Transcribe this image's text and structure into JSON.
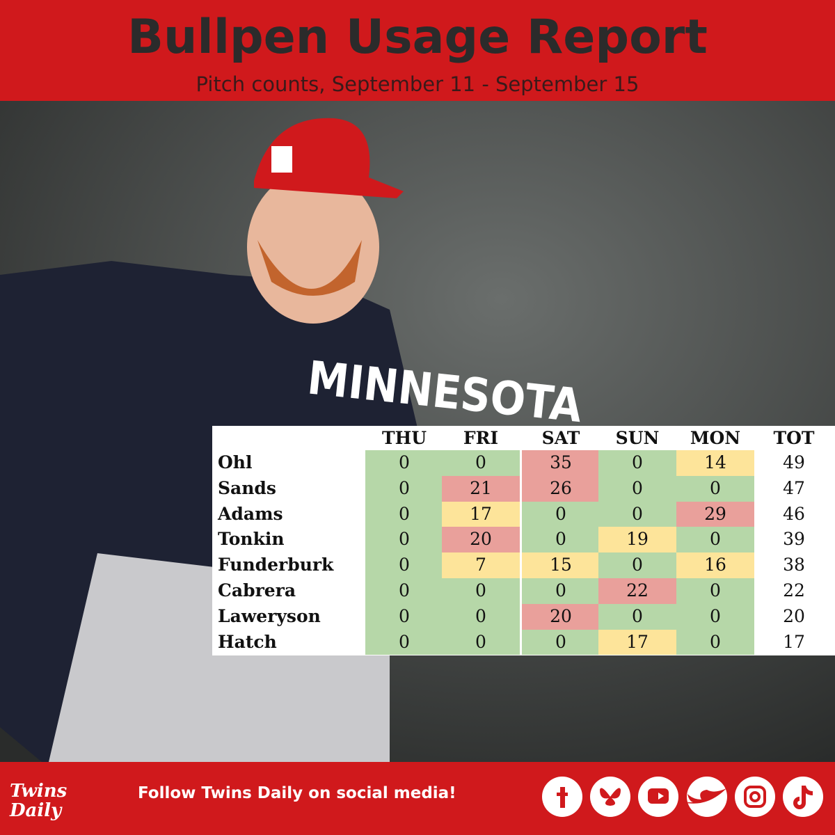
{
  "header": {
    "title": "Bullpen Usage Report",
    "subtitle": "Pitch counts, September 11 - September 15"
  },
  "photo": {
    "jersey_text": "MINNESOTA"
  },
  "table": {
    "columns": [
      "THU",
      "FRI",
      "SAT",
      "SUN",
      "MON",
      "TOT"
    ],
    "colors": {
      "g": "#b6d7a8",
      "y": "#fde49a",
      "r": "#e9a09b"
    },
    "rows": [
      {
        "name": "Ohl",
        "values": [
          0,
          0,
          35,
          0,
          14
        ],
        "total": 49,
        "fills": [
          "g",
          "g",
          "r",
          "g",
          "y"
        ]
      },
      {
        "name": "Sands",
        "values": [
          0,
          21,
          26,
          0,
          0
        ],
        "total": 47,
        "fills": [
          "g",
          "r",
          "r",
          "g",
          "g"
        ]
      },
      {
        "name": "Adams",
        "values": [
          0,
          17,
          0,
          0,
          29
        ],
        "total": 46,
        "fills": [
          "g",
          "y",
          "g",
          "g",
          "r"
        ]
      },
      {
        "name": "Tonkin",
        "values": [
          0,
          20,
          0,
          19,
          0
        ],
        "total": 39,
        "fills": [
          "g",
          "r",
          "g",
          "y",
          "g"
        ]
      },
      {
        "name": "Funderburk",
        "values": [
          0,
          7,
          15,
          0,
          16
        ],
        "total": 38,
        "fills": [
          "g",
          "y",
          "y",
          "g",
          "y"
        ]
      },
      {
        "name": "Cabrera",
        "values": [
          0,
          0,
          0,
          22,
          0
        ],
        "total": 22,
        "fills": [
          "g",
          "g",
          "g",
          "r",
          "g"
        ]
      },
      {
        "name": "Laweryson",
        "values": [
          0,
          0,
          20,
          0,
          0
        ],
        "total": 20,
        "fills": [
          "g",
          "g",
          "r",
          "g",
          "g"
        ]
      },
      {
        "name": "Hatch",
        "values": [
          0,
          0,
          0,
          17,
          0
        ],
        "total": 17,
        "fills": [
          "g",
          "g",
          "g",
          "y",
          "g"
        ]
      }
    ]
  },
  "footer": {
    "brand": "Twins Daily",
    "text": "Follow Twins Daily on social media!"
  }
}
